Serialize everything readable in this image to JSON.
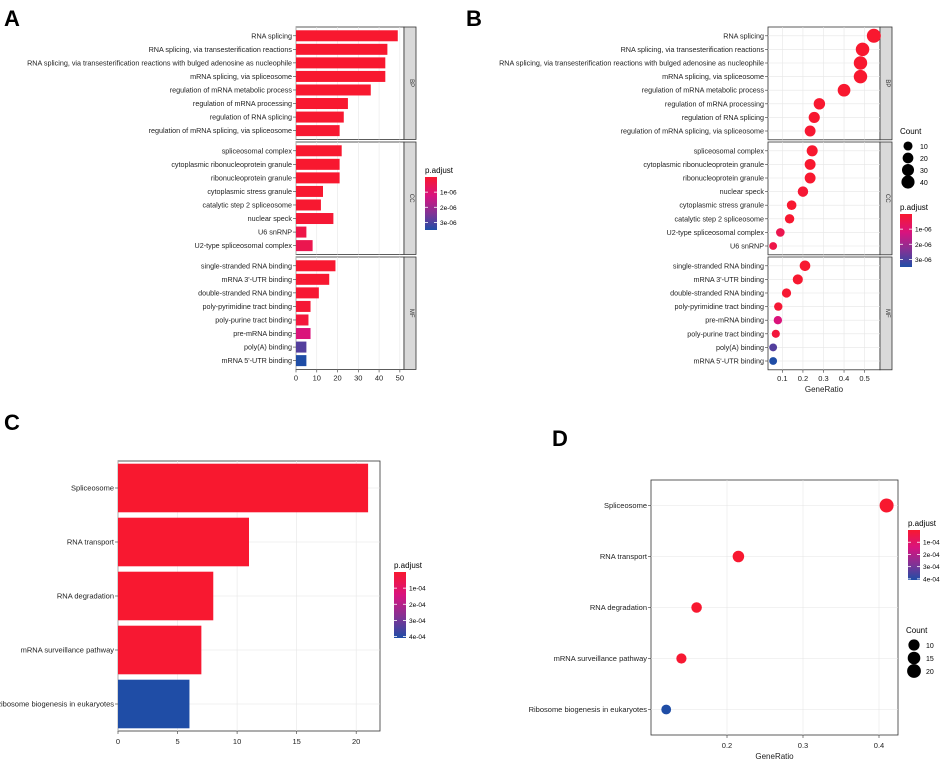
{
  "colors": {
    "red": "#F8182F",
    "magenta": "#D8137F",
    "purple": "#7D3496",
    "blue": "#1F4DA6",
    "panel_bg": "#EBEBEB",
    "strip_bg": "#D9D9D9",
    "grid": "#E6E6E6"
  },
  "chart_data": [
    {
      "panel": "A",
      "type": "bar",
      "orientation": "horizontal",
      "facets": [
        {
          "name": "BP",
          "categories": [
            "RNA splicing",
            "RNA splicing, via transesterification reactions",
            "RNA splicing, via transesterification reactions with bulged adenosine as nucleophile",
            "mRNA splicing, via spliceosome",
            "regulation of mRNA metabolic process",
            "regulation of mRNA processing",
            "regulation of RNA splicing",
            "regulation of mRNA splicing, via spliceosome"
          ],
          "values": [
            49,
            44,
            43,
            43,
            36,
            25,
            23,
            21
          ],
          "p_adjust": [
            1e-12,
            1e-11,
            1e-11,
            1e-11,
            1e-09,
            1e-08,
            2e-08,
            5e-08
          ]
        },
        {
          "name": "CC",
          "categories": [
            "spliceosomal complex",
            "cytoplasmic ribonucleoprotein granule",
            "ribonucleoprotein granule",
            "cytoplasmic stress granule",
            "catalytic step 2 spliceosome",
            "nuclear speck",
            "U6 snRNP",
            "U2-type spliceosomal complex"
          ],
          "values": [
            22,
            21,
            21,
            13,
            12,
            18,
            5,
            8
          ],
          "p_adjust": [
            1e-09,
            1e-09,
            1e-09,
            1e-08,
            2e-08,
            1e-07,
            4e-07,
            5e-07
          ]
        },
        {
          "name": "MF",
          "categories": [
            "single-stranded RNA binding",
            "mRNA 3'-UTR binding",
            "double-stranded RNA binding",
            "poly-pyrimidine tract binding",
            "poly-purine tract binding",
            "pre-mRNA binding",
            "poly(A) binding",
            "mRNA 5'-UTR binding"
          ],
          "values": [
            19,
            16,
            11,
            7,
            6,
            7,
            5,
            5
          ],
          "p_adjust": [
            1e-08,
            2e-08,
            5e-08,
            1e-07,
            2e-07,
            1.2e-06,
            3e-06,
            3.6e-06
          ]
        }
      ],
      "xticks": [
        0,
        10,
        20,
        30,
        40,
        50
      ],
      "xlim": [
        0,
        52
      ],
      "legend": {
        "title": "p.adjust",
        "labels": [
          "1e-06",
          "2e-06",
          "3e-06"
        ]
      }
    },
    {
      "panel": "B",
      "type": "scatter",
      "facets": [
        {
          "name": "BP",
          "categories": [
            "RNA splicing",
            "RNA splicing, via transesterification reactions",
            "RNA splicing, via transesterification reactions with bulged adenosine as nucleophile",
            "mRNA splicing, via spliceosome",
            "regulation of mRNA metabolic process",
            "regulation of mRNA processing",
            "regulation of RNA splicing",
            "regulation of mRNA splicing, via spliceosome"
          ],
          "gene_ratio": [
            0.545,
            0.49,
            0.48,
            0.48,
            0.4,
            0.28,
            0.255,
            0.235
          ],
          "count": [
            49,
            44,
            43,
            43,
            36,
            25,
            23,
            21
          ],
          "p_adjust": [
            1e-12,
            1e-11,
            1e-11,
            1e-11,
            1e-09,
            1e-08,
            2e-08,
            5e-08
          ]
        },
        {
          "name": "CC",
          "categories": [
            "spliceosomal complex",
            "cytoplasmic ribonucleoprotein granule",
            "ribonucleoprotein granule",
            "nuclear speck",
            "cytoplasmic stress granule",
            "catalytic step 2 spliceosome",
            "U2-type spliceosomal complex",
            "U6 snRNP"
          ],
          "gene_ratio": [
            0.245,
            0.235,
            0.235,
            0.2,
            0.145,
            0.135,
            0.09,
            0.055
          ],
          "count": [
            22,
            21,
            21,
            18,
            13,
            12,
            8,
            5
          ],
          "p_adjust": [
            1e-09,
            1e-09,
            1e-09,
            1e-07,
            1e-08,
            2e-08,
            5e-07,
            4e-07
          ]
        },
        {
          "name": "MF",
          "categories": [
            "single-stranded RNA binding",
            "mRNA 3'-UTR binding",
            "double-stranded RNA binding",
            "poly-pyrimidine tract binding",
            "pre-mRNA binding",
            "poly-purine tract binding",
            "poly(A) binding",
            "mRNA 5'-UTR binding"
          ],
          "gene_ratio": [
            0.21,
            0.175,
            0.12,
            0.08,
            0.078,
            0.068,
            0.055,
            0.055
          ],
          "count": [
            19,
            16,
            11,
            7,
            7,
            6,
            5,
            5
          ],
          "p_adjust": [
            1e-08,
            2e-08,
            5e-08,
            1e-07,
            1.2e-06,
            2e-07,
            3e-06,
            3.6e-06
          ]
        }
      ],
      "xlabel": "GeneRatio",
      "xticks": [
        0.1,
        0.2,
        0.3,
        0.4,
        0.5
      ],
      "xlim": [
        0.03,
        0.575
      ],
      "size_legend": {
        "title": "Count",
        "values": [
          10,
          20,
          30,
          40
        ]
      },
      "legend": {
        "title": "p.adjust",
        "labels": [
          "1e-06",
          "2e-06",
          "3e-06"
        ]
      }
    },
    {
      "panel": "C",
      "type": "bar",
      "orientation": "horizontal",
      "categories": [
        "Spliceosome",
        "RNA transport",
        "RNA degradation",
        "mRNA surveillance pathway",
        "Ribosome biogenesis in eukaryotes"
      ],
      "values": [
        21,
        11,
        8,
        7,
        6
      ],
      "p_adjust": [
        1e-10,
        1e-06,
        2e-06,
        5e-06,
        0.0004
      ],
      "xticks": [
        0,
        5,
        10,
        15,
        20
      ],
      "xlim": [
        0,
        22
      ],
      "legend": {
        "title": "p.adjust",
        "labels": [
          "1e-04",
          "2e-04",
          "3e-04",
          "4e-04"
        ]
      }
    },
    {
      "panel": "D",
      "type": "scatter",
      "categories": [
        "Spliceosome",
        "RNA transport",
        "RNA degradation",
        "mRNA surveillance pathway",
        "Ribosome biogenesis in eukaryotes"
      ],
      "gene_ratio": [
        0.41,
        0.215,
        0.16,
        0.14,
        0.12
      ],
      "count": [
        21,
        11,
        8,
        7,
        6
      ],
      "p_adjust": [
        1e-10,
        1e-06,
        2e-06,
        5e-06,
        0.0004
      ],
      "xlabel": "GeneRatio",
      "xticks": [
        0.2,
        0.3,
        0.4
      ],
      "xlim": [
        0.1,
        0.425
      ],
      "size_legend": {
        "title": "Count",
        "values": [
          10,
          15,
          20
        ]
      },
      "legend": {
        "title": "p.adjust",
        "labels": [
          "1e-04",
          "2e-04",
          "3e-04",
          "4e-04"
        ]
      }
    }
  ]
}
